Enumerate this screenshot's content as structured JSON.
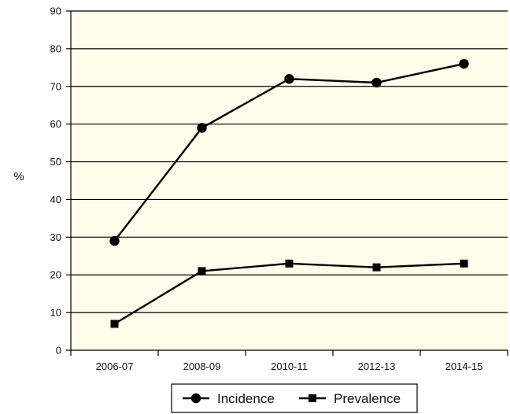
{
  "chart_data": {
    "type": "line",
    "categories": [
      "2006-07",
      "2008-09",
      "2010-11",
      "2012-13",
      "2014-15"
    ],
    "series": [
      {
        "name": "Incidence",
        "marker": "circle",
        "values": [
          29,
          59,
          72,
          71,
          76
        ]
      },
      {
        "name": "Prevalence",
        "marker": "square",
        "values": [
          7,
          21,
          23,
          22,
          23
        ]
      }
    ],
    "title": "",
    "xlabel": "",
    "ylabel": "%",
    "ylim": [
      0,
      90
    ],
    "yticks": [
      0,
      10,
      20,
      30,
      40,
      50,
      60,
      70,
      80,
      90
    ],
    "grid": "horizontal",
    "legend_position": "bottom-center",
    "colors": {
      "plot_background": "#fefcea",
      "line": "#000000",
      "grid": "#000000"
    }
  }
}
